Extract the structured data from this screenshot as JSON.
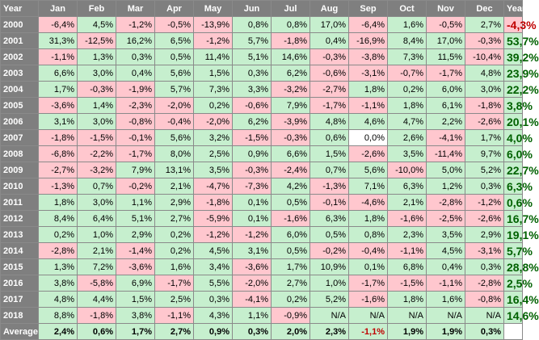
{
  "headers": [
    "Year",
    "Jan",
    "Feb",
    "Mar",
    "Apr",
    "May",
    "Jun",
    "Jul",
    "Aug",
    "Sep",
    "Oct",
    "Nov",
    "Dec",
    "Year%"
  ],
  "rows": [
    {
      "year": "2000",
      "months": [
        "-6,4%",
        "4,5%",
        "-1,2%",
        "-0,5%",
        "-13,9%",
        "0,8%",
        "0,8%",
        "17,0%",
        "-6,4%",
        "1,6%",
        "-0,5%",
        "2,7%"
      ],
      "total": "-4,3%"
    },
    {
      "year": "2001",
      "months": [
        "31,3%",
        "-12,5%",
        "16,2%",
        "6,5%",
        "-1,2%",
        "5,7%",
        "-1,8%",
        "0,4%",
        "-16,9%",
        "8,4%",
        "17,0%",
        "-0,3%"
      ],
      "total": "53,7%"
    },
    {
      "year": "2002",
      "months": [
        "-1,1%",
        "1,3%",
        "0,3%",
        "0,5%",
        "11,4%",
        "5,1%",
        "14,6%",
        "-0,3%",
        "-3,8%",
        "7,3%",
        "11,5%",
        "-10,4%"
      ],
      "total": "39,2%"
    },
    {
      "year": "2003",
      "months": [
        "6,6%",
        "3,0%",
        "0,4%",
        "5,6%",
        "1,5%",
        "0,3%",
        "6,2%",
        "-0,6%",
        "-3,1%",
        "-0,7%",
        "-1,7%",
        "4,8%"
      ],
      "total": "23,9%"
    },
    {
      "year": "2004",
      "months": [
        "1,7%",
        "-0,3%",
        "-1,9%",
        "5,7%",
        "7,3%",
        "3,3%",
        "-3,2%",
        "-2,7%",
        "1,8%",
        "0,2%",
        "6,0%",
        "3,0%"
      ],
      "total": "22,2%"
    },
    {
      "year": "2005",
      "months": [
        "-3,6%",
        "1,4%",
        "-2,3%",
        "-2,0%",
        "0,2%",
        "-0,6%",
        "7,9%",
        "-1,7%",
        "-1,1%",
        "1,8%",
        "6,1%",
        "-1,8%"
      ],
      "total": "3,8%"
    },
    {
      "year": "2006",
      "months": [
        "3,1%",
        "3,0%",
        "-0,8%",
        "-0,4%",
        "-2,0%",
        "6,2%",
        "-3,9%",
        "4,8%",
        "4,6%",
        "4,7%",
        "2,2%",
        "-2,6%"
      ],
      "total": "20,1%"
    },
    {
      "year": "2007",
      "months": [
        "-1,8%",
        "-1,5%",
        "-0,1%",
        "5,6%",
        "3,2%",
        "-1,5%",
        "-0,3%",
        "0,6%",
        "0,0%",
        "2,6%",
        "-4,1%",
        "1,7%"
      ],
      "total": "4,0%"
    },
    {
      "year": "2008",
      "months": [
        "-6,8%",
        "-2,2%",
        "-1,7%",
        "8,0%",
        "2,5%",
        "0,9%",
        "6,6%",
        "1,5%",
        "-2,6%",
        "3,5%",
        "-11,4%",
        "9,7%"
      ],
      "total": "6,0%"
    },
    {
      "year": "2009",
      "months": [
        "-2,7%",
        "-3,2%",
        "7,9%",
        "13,1%",
        "3,5%",
        "-0,3%",
        "-2,4%",
        "0,7%",
        "5,6%",
        "-10,0%",
        "5,0%",
        "5,2%"
      ],
      "total": "22,7%"
    },
    {
      "year": "2010",
      "months": [
        "-1,3%",
        "0,7%",
        "-0,2%",
        "2,1%",
        "-4,7%",
        "-7,3%",
        "4,2%",
        "-1,3%",
        "7,1%",
        "6,3%",
        "1,2%",
        "0,3%"
      ],
      "total": "6,3%"
    },
    {
      "year": "2011",
      "months": [
        "1,8%",
        "3,0%",
        "1,1%",
        "2,9%",
        "-1,8%",
        "0,1%",
        "0,5%",
        "-0,1%",
        "-4,6%",
        "2,1%",
        "-2,8%",
        "-1,2%"
      ],
      "total": "0,6%"
    },
    {
      "year": "2012",
      "months": [
        "8,4%",
        "6,4%",
        "5,1%",
        "2,7%",
        "-5,9%",
        "0,1%",
        "-1,6%",
        "6,3%",
        "1,8%",
        "-1,6%",
        "-2,5%",
        "-2,6%"
      ],
      "total": "16,7%"
    },
    {
      "year": "2013",
      "months": [
        "0,2%",
        "1,0%",
        "2,9%",
        "0,2%",
        "-1,2%",
        "-1,2%",
        "6,0%",
        "0,5%",
        "0,8%",
        "2,3%",
        "3,5%",
        "2,9%"
      ],
      "total": "19,1%"
    },
    {
      "year": "2014",
      "months": [
        "-2,8%",
        "2,1%",
        "-1,4%",
        "0,2%",
        "4,5%",
        "3,1%",
        "0,5%",
        "-0,2%",
        "-0,4%",
        "-1,1%",
        "4,5%",
        "-3,1%"
      ],
      "total": "5,7%"
    },
    {
      "year": "2015",
      "months": [
        "1,3%",
        "7,2%",
        "-3,6%",
        "1,6%",
        "3,4%",
        "-3,6%",
        "1,7%",
        "10,9%",
        "0,1%",
        "6,8%",
        "0,4%",
        "0,3%"
      ],
      "total": "28,8%"
    },
    {
      "year": "2016",
      "months": [
        "3,8%",
        "-5,8%",
        "6,9%",
        "-1,7%",
        "5,5%",
        "-2,0%",
        "2,7%",
        "1,0%",
        "-1,7%",
        "-1,5%",
        "-1,1%",
        "-2,8%"
      ],
      "total": "2,5%"
    },
    {
      "year": "2017",
      "months": [
        "4,8%",
        "4,4%",
        "1,5%",
        "2,5%",
        "0,3%",
        "-4,1%",
        "0,2%",
        "5,2%",
        "-1,6%",
        "1,8%",
        "1,6%",
        "-0,8%"
      ],
      "total": "16,4%"
    },
    {
      "year": "2018",
      "months": [
        "8,8%",
        "-1,8%",
        "3,8%",
        "-1,1%",
        "4,3%",
        "1,1%",
        "-0,9%",
        "N/A",
        "N/A",
        "N/A",
        "N/A",
        "N/A"
      ],
      "total": "14,6%"
    }
  ],
  "average": {
    "label": "Average",
    "months": [
      "2,4%",
      "0,6%",
      "1,7%",
      "2,7%",
      "0,9%",
      "0,3%",
      "2,0%",
      "2,3%",
      "-1,1%",
      "1,9%",
      "1,9%",
      "0,3%"
    ],
    "total": ""
  },
  "colors": {
    "header_bg": "#7f7f7f",
    "positive_bg": "#c6efce",
    "negative_bg": "#ffc7ce",
    "total_positive_text": "#006100",
    "total_negative_text": "#c00000"
  }
}
